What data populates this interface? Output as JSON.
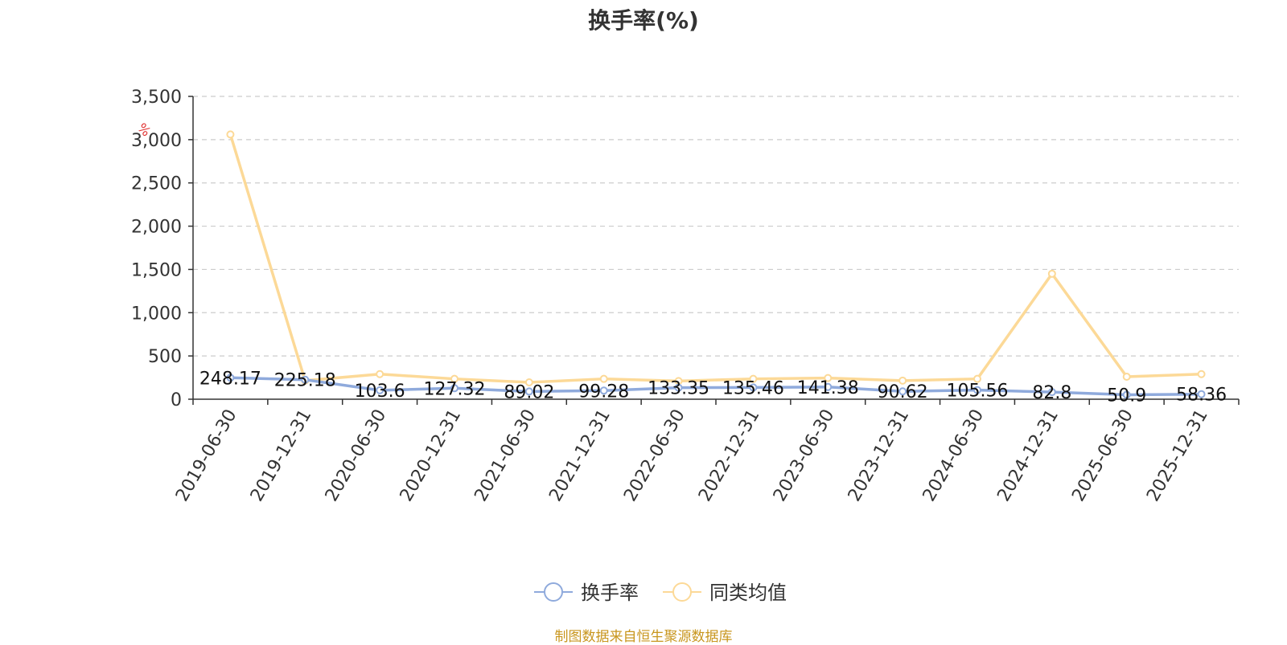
{
  "chart_data": {
    "type": "line",
    "title": "换手率(%)",
    "y_unit": "%",
    "categories": [
      "2019-06-30",
      "2019-12-31",
      "2020-06-30",
      "2020-12-31",
      "2021-06-30",
      "2021-12-31",
      "2022-06-30",
      "2022-12-31",
      "2023-06-30",
      "2023-12-31",
      "2024-06-30",
      "2024-12-31",
      "2025-06-30",
      "2025-12-31"
    ],
    "ylim": [
      0,
      3500
    ],
    "yticks": [
      0,
      500,
      1000,
      1500,
      2000,
      2500,
      3000,
      3500
    ],
    "ytick_labels": [
      "0",
      "500",
      "1,000",
      "1,500",
      "2,000",
      "2,500",
      "3,000",
      "3,500"
    ],
    "grid": true,
    "legend_position": "bottom-center",
    "series": [
      {
        "name": "换手率",
        "color": "#8faadc",
        "values": [
          248.17,
          225.18,
          103.6,
          127.32,
          89.02,
          99.28,
          133.35,
          135.46,
          141.38,
          90.62,
          105.56,
          82.8,
          50.9,
          58.36
        ],
        "labels": [
          "248.17",
          "225.18",
          "103.6",
          "127.32",
          "89.02",
          "99.28",
          "133.35",
          "135.46",
          "141.38",
          "90.62",
          "105.56",
          "82.8",
          "50.9",
          "58.36"
        ]
      },
      {
        "name": "同类均值",
        "color": "#fcd997",
        "values": [
          3060,
          215,
          290,
          235,
          195,
          235,
          210,
          235,
          245,
          215,
          235,
          1450,
          260,
          290
        ]
      }
    ]
  },
  "source_note": "制图数据来自恒生聚源数据库",
  "colors": {
    "axis": "#333333",
    "grid": "#cccccc",
    "unit": "#e03030",
    "source": "#c8961e"
  }
}
